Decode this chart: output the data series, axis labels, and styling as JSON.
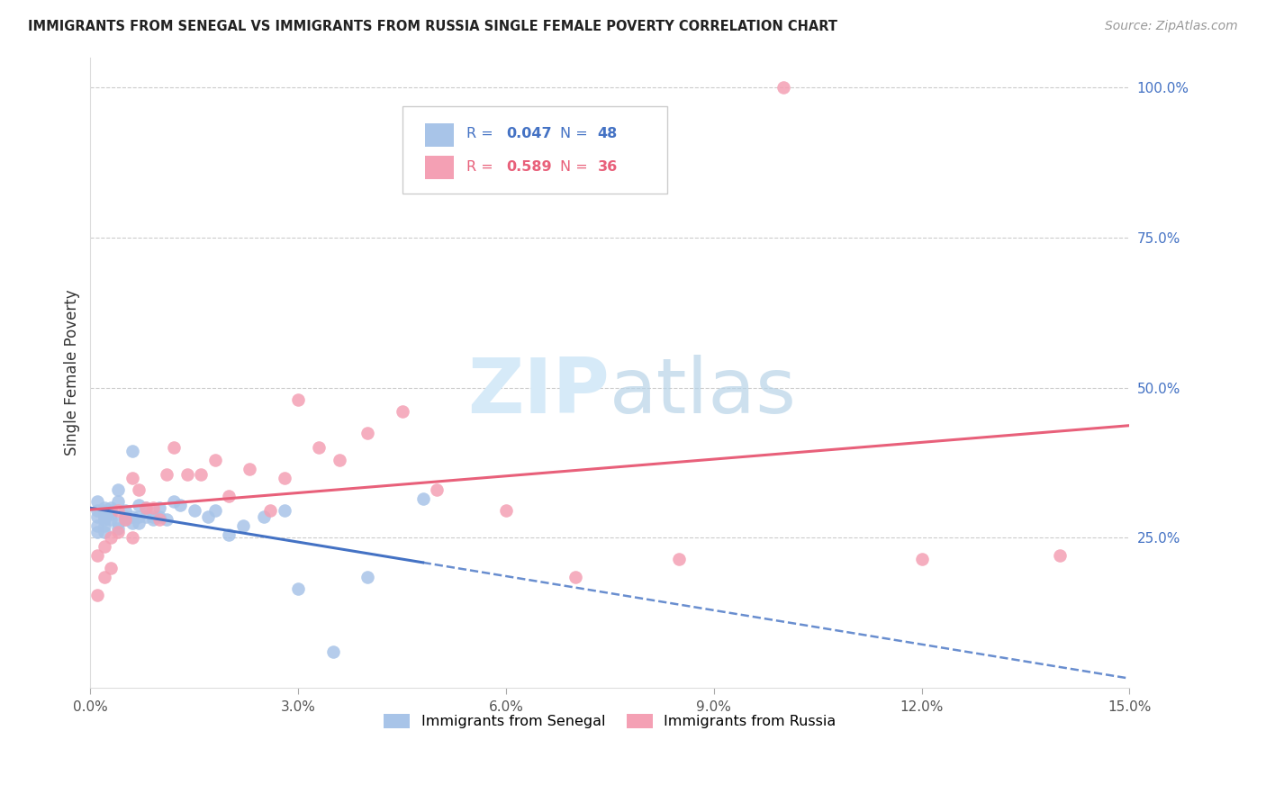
{
  "title": "IMMIGRANTS FROM SENEGAL VS IMMIGRANTS FROM RUSSIA SINGLE FEMALE POVERTY CORRELATION CHART",
  "source": "Source: ZipAtlas.com",
  "ylabel": "Single Female Poverty",
  "right_yticks": [
    "100.0%",
    "75.0%",
    "50.0%",
    "25.0%"
  ],
  "right_ytick_vals": [
    1.0,
    0.75,
    0.5,
    0.25
  ],
  "senegal_color": "#a8c4e8",
  "russia_color": "#f4a0b4",
  "senegal_line_color": "#4472c4",
  "russia_line_color": "#e8607a",
  "watermark_color": "#d6eaf8",
  "xlim": [
    0.0,
    0.15
  ],
  "ylim": [
    0.0,
    1.05
  ],
  "xticklabels": [
    "0.0%",
    "3.0%",
    "6.0%",
    "9.0%",
    "12.0%",
    "15.0%"
  ],
  "xtick_vals": [
    0.0,
    0.03,
    0.06,
    0.09,
    0.12,
    0.15
  ],
  "senegal_x": [
    0.001,
    0.001,
    0.001,
    0.001,
    0.001,
    0.002,
    0.002,
    0.002,
    0.002,
    0.002,
    0.002,
    0.003,
    0.003,
    0.003,
    0.003,
    0.004,
    0.004,
    0.004,
    0.004,
    0.005,
    0.005,
    0.005,
    0.006,
    0.006,
    0.006,
    0.007,
    0.007,
    0.007,
    0.008,
    0.008,
    0.009,
    0.009,
    0.01,
    0.01,
    0.011,
    0.012,
    0.013,
    0.015,
    0.017,
    0.018,
    0.02,
    0.022,
    0.025,
    0.028,
    0.03,
    0.035,
    0.04,
    0.048
  ],
  "senegal_y": [
    0.285,
    0.27,
    0.26,
    0.295,
    0.31,
    0.28,
    0.295,
    0.27,
    0.26,
    0.3,
    0.285,
    0.29,
    0.28,
    0.295,
    0.3,
    0.275,
    0.265,
    0.31,
    0.33,
    0.285,
    0.295,
    0.28,
    0.285,
    0.275,
    0.395,
    0.285,
    0.305,
    0.275,
    0.3,
    0.285,
    0.285,
    0.28,
    0.3,
    0.285,
    0.28,
    0.31,
    0.305,
    0.295,
    0.285,
    0.295,
    0.255,
    0.27,
    0.285,
    0.295,
    0.165,
    0.06,
    0.185,
    0.315
  ],
  "russia_x": [
    0.001,
    0.001,
    0.002,
    0.002,
    0.003,
    0.003,
    0.004,
    0.004,
    0.005,
    0.006,
    0.006,
    0.007,
    0.008,
    0.009,
    0.01,
    0.011,
    0.012,
    0.014,
    0.016,
    0.018,
    0.02,
    0.023,
    0.026,
    0.028,
    0.03,
    0.033,
    0.036,
    0.04,
    0.045,
    0.05,
    0.06,
    0.07,
    0.085,
    0.1,
    0.12,
    0.14
  ],
  "russia_y": [
    0.22,
    0.155,
    0.235,
    0.185,
    0.25,
    0.2,
    0.26,
    0.295,
    0.28,
    0.25,
    0.35,
    0.33,
    0.3,
    0.3,
    0.28,
    0.355,
    0.4,
    0.355,
    0.355,
    0.38,
    0.32,
    0.365,
    0.295,
    0.35,
    0.48,
    0.4,
    0.38,
    0.425,
    0.46,
    0.33,
    0.295,
    0.185,
    0.215,
    1.0,
    0.215,
    0.22
  ]
}
